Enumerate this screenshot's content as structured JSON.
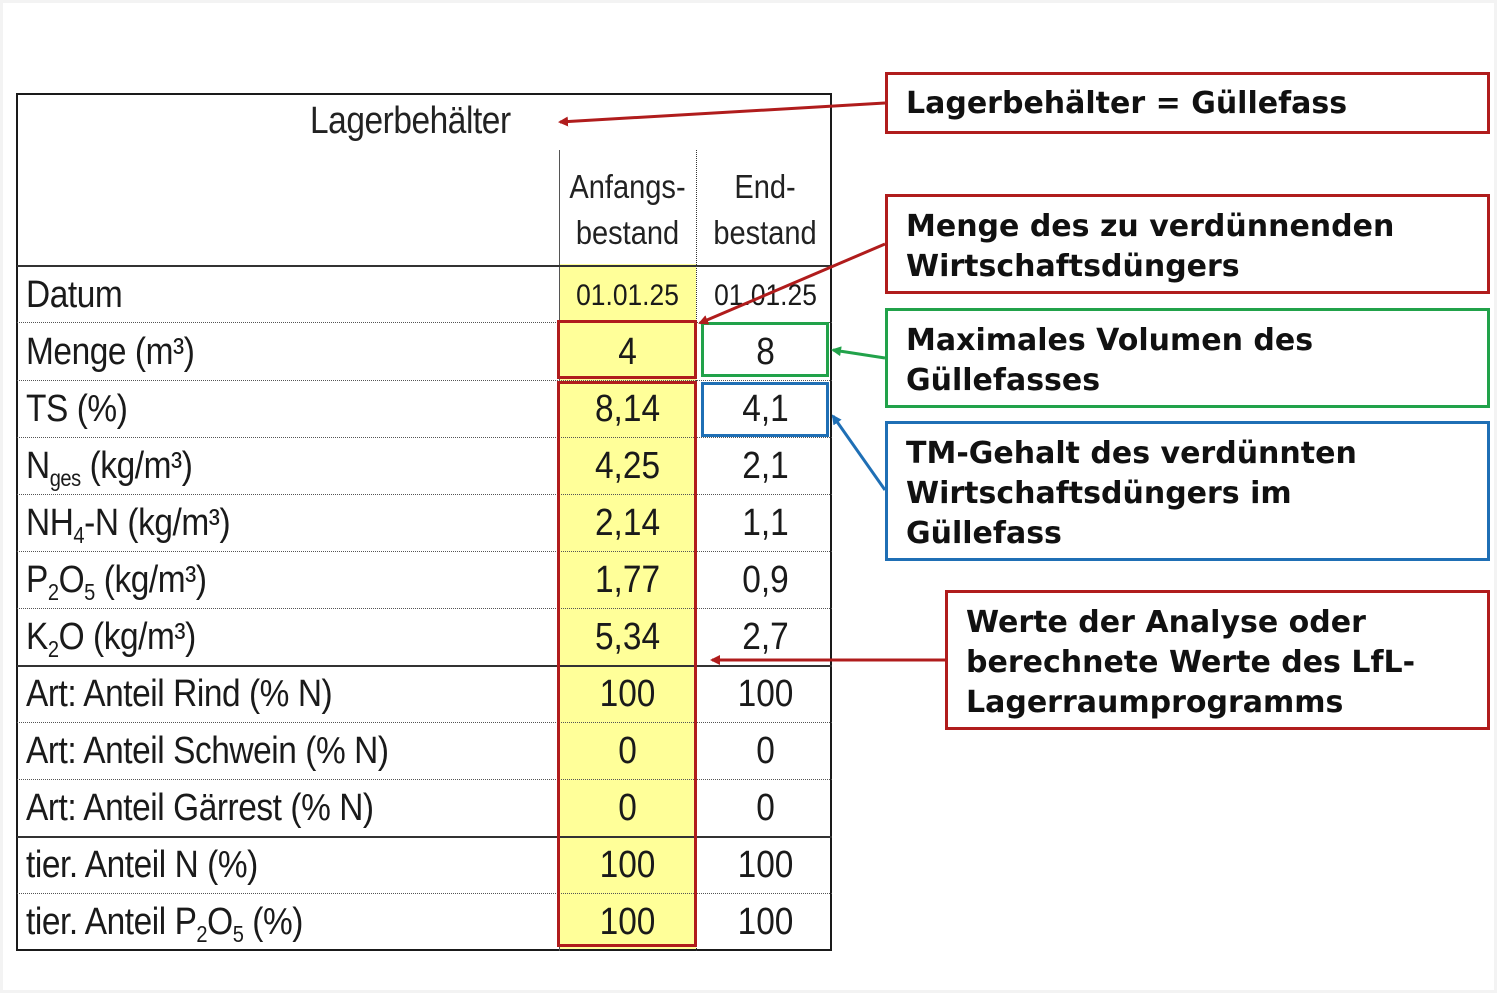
{
  "table": {
    "title": "Lagerbehälter",
    "col_start_line1": "Anfangs-",
    "col_start_line2": "bestand",
    "col_end_line1": "End-",
    "col_end_line2": "bestand",
    "rows": [
      {
        "label": "Datum",
        "start": "01.01.25",
        "end": "01.01.25"
      },
      {
        "label": "Menge (m³)",
        "start": "4",
        "end": "8"
      },
      {
        "label": "TS (%)",
        "start": "8,14",
        "end": "4,1"
      },
      {
        "label_main": "N",
        "label_sub": "ges",
        "label_rest": " (kg/m³)",
        "start": "4,25",
        "end": "2,1"
      },
      {
        "label_main": "NH",
        "label_sub": "4",
        "label_rest": "-N (kg/m³)",
        "start": "2,14",
        "end": "1,1"
      },
      {
        "label_main": "P",
        "label_sub": "2",
        "label_mid": "O",
        "label_sub2": "5",
        "label_rest": " (kg/m³)",
        "start": "1,77",
        "end": "0,9"
      },
      {
        "label_main": "K",
        "label_sub": "2",
        "label_rest": "O (kg/m³)",
        "start": "5,34",
        "end": "2,7"
      },
      {
        "label": "Art: Anteil Rind (% N)",
        "start": "100",
        "end": "100"
      },
      {
        "label": "Art: Anteil Schwein (% N)",
        "start": "0",
        "end": "0"
      },
      {
        "label": "Art: Anteil Gärrest (% N)",
        "start": "0",
        "end": "0"
      },
      {
        "label": "tier. Anteil N (%)",
        "start": "100",
        "end": "100"
      },
      {
        "label_main": "tier. Anteil P",
        "label_sub": "2",
        "label_mid": "O",
        "label_sub2": "5",
        "label_rest": " (%)",
        "start": "100",
        "end": "100"
      }
    ]
  },
  "callouts": {
    "lagerbehaelter": "Lagerbehälter = Güllefass",
    "menge_line1": "Menge des zu verdünnenden",
    "menge_line2": "Wirtschaftsdüngers",
    "volumen_line1": "Maximales Volumen des",
    "volumen_line2": "Güllefasses",
    "tm_line1": "TM-Gehalt des verdünnten",
    "tm_line2": "Wirtschaftsdüngers im",
    "tm_line3": "Güllefass",
    "werte_line1": "Werte der Analyse oder",
    "werte_line2": "berechnete Werte des LfL-",
    "werte_line3": "Lagerraumprogramms"
  },
  "colors": {
    "red": "#b01c1c",
    "green": "#21a24a",
    "blue": "#1f6fb5",
    "highlight": "#ffff99"
  }
}
